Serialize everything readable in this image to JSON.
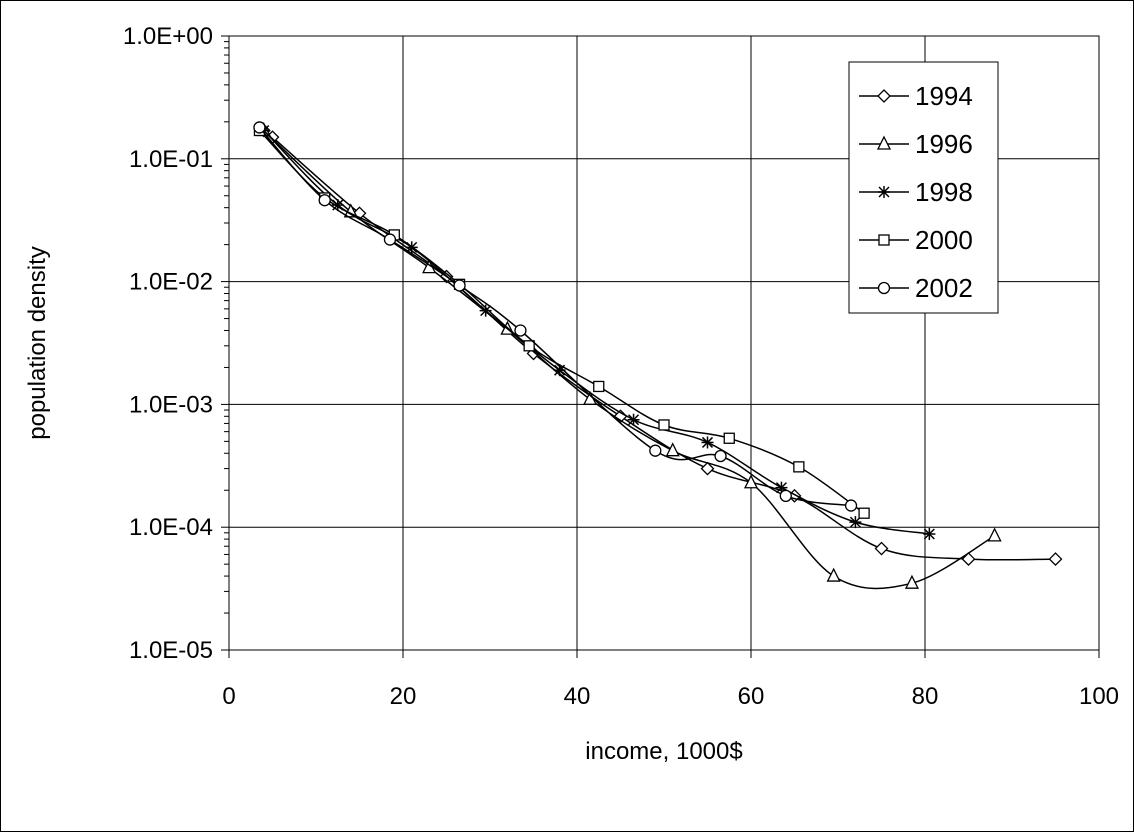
{
  "chart_data": {
    "type": "line",
    "xlabel": "income, 1000$",
    "ylabel": "population density",
    "xlim": [
      0,
      100
    ],
    "ylim": [
      1e-05,
      1
    ],
    "x_ticks": [
      0,
      20,
      40,
      60,
      80,
      100
    ],
    "x_tick_labels": [
      "0",
      "20",
      "40",
      "60",
      "80",
      "100"
    ],
    "y_scale": "log",
    "y_ticks": [
      1,
      0.1,
      0.01,
      0.001,
      0.0001,
      1e-05
    ],
    "y_tick_labels": [
      "1.0E+00",
      "1.0E-01",
      "1.0E-02",
      "1.0E-03",
      "1.0E-04",
      "1.0E-05"
    ],
    "grid": true,
    "legend_position": "top-right",
    "series": [
      {
        "name": "1994",
        "marker": "diamond",
        "points": [
          {
            "x": 4.0,
            "y": 0.17
          },
          {
            "x": 5.0,
            "y": 0.15
          },
          {
            "x": 15.0,
            "y": 0.036
          },
          {
            "x": 25.0,
            "y": 0.011
          },
          {
            "x": 35.0,
            "y": 0.0026
          },
          {
            "x": 45.0,
            "y": 0.0008
          },
          {
            "x": 55.0,
            "y": 0.0003
          },
          {
            "x": 65.0,
            "y": 0.00018
          },
          {
            "x": 75.0,
            "y": 6.7e-05
          },
          {
            "x": 85.0,
            "y": 5.5e-05
          },
          {
            "x": 95.0,
            "y": 5.5e-05
          }
        ]
      },
      {
        "name": "1996",
        "marker": "triangle",
        "points": [
          {
            "x": 4.0,
            "y": 0.17
          },
          {
            "x": 14.0,
            "y": 0.037
          },
          {
            "x": 23.0,
            "y": 0.013
          },
          {
            "x": 32.0,
            "y": 0.0041
          },
          {
            "x": 41.5,
            "y": 0.0011
          },
          {
            "x": 51.0,
            "y": 0.00042
          },
          {
            "x": 60.0,
            "y": 0.00023
          },
          {
            "x": 69.5,
            "y": 4e-05
          },
          {
            "x": 78.5,
            "y": 3.5e-05
          },
          {
            "x": 88.0,
            "y": 8.5e-05
          }
        ]
      },
      {
        "name": "1998",
        "marker": "star",
        "points": [
          {
            "x": 4.0,
            "y": 0.17
          },
          {
            "x": 12.5,
            "y": 0.042
          },
          {
            "x": 21.0,
            "y": 0.019
          },
          {
            "x": 29.5,
            "y": 0.0058
          },
          {
            "x": 38.0,
            "y": 0.0019
          },
          {
            "x": 46.5,
            "y": 0.00075
          },
          {
            "x": 55.0,
            "y": 0.00049
          },
          {
            "x": 63.5,
            "y": 0.00021
          },
          {
            "x": 72.0,
            "y": 0.00011
          },
          {
            "x": 80.5,
            "y": 8.8e-05
          }
        ]
      },
      {
        "name": "2000",
        "marker": "square",
        "points": [
          {
            "x": 3.5,
            "y": 0.17
          },
          {
            "x": 11.0,
            "y": 0.048
          },
          {
            "x": 19.0,
            "y": 0.024
          },
          {
            "x": 26.5,
            "y": 0.0095
          },
          {
            "x": 34.5,
            "y": 0.003
          },
          {
            "x": 42.5,
            "y": 0.0014
          },
          {
            "x": 50.0,
            "y": 0.00068
          },
          {
            "x": 57.5,
            "y": 0.00053
          },
          {
            "x": 65.5,
            "y": 0.00031
          },
          {
            "x": 73.0,
            "y": 0.00013
          }
        ]
      },
      {
        "name": "2002",
        "marker": "circle",
        "points": [
          {
            "x": 3.5,
            "y": 0.18
          },
          {
            "x": 11.0,
            "y": 0.046
          },
          {
            "x": 18.5,
            "y": 0.022
          },
          {
            "x": 26.5,
            "y": 0.0093
          },
          {
            "x": 33.5,
            "y": 0.004
          },
          {
            "x": 49.0,
            "y": 0.00042
          },
          {
            "x": 56.5,
            "y": 0.00038
          },
          {
            "x": 64.0,
            "y": 0.00018
          },
          {
            "x": 71.5,
            "y": 0.00015
          }
        ]
      }
    ]
  }
}
